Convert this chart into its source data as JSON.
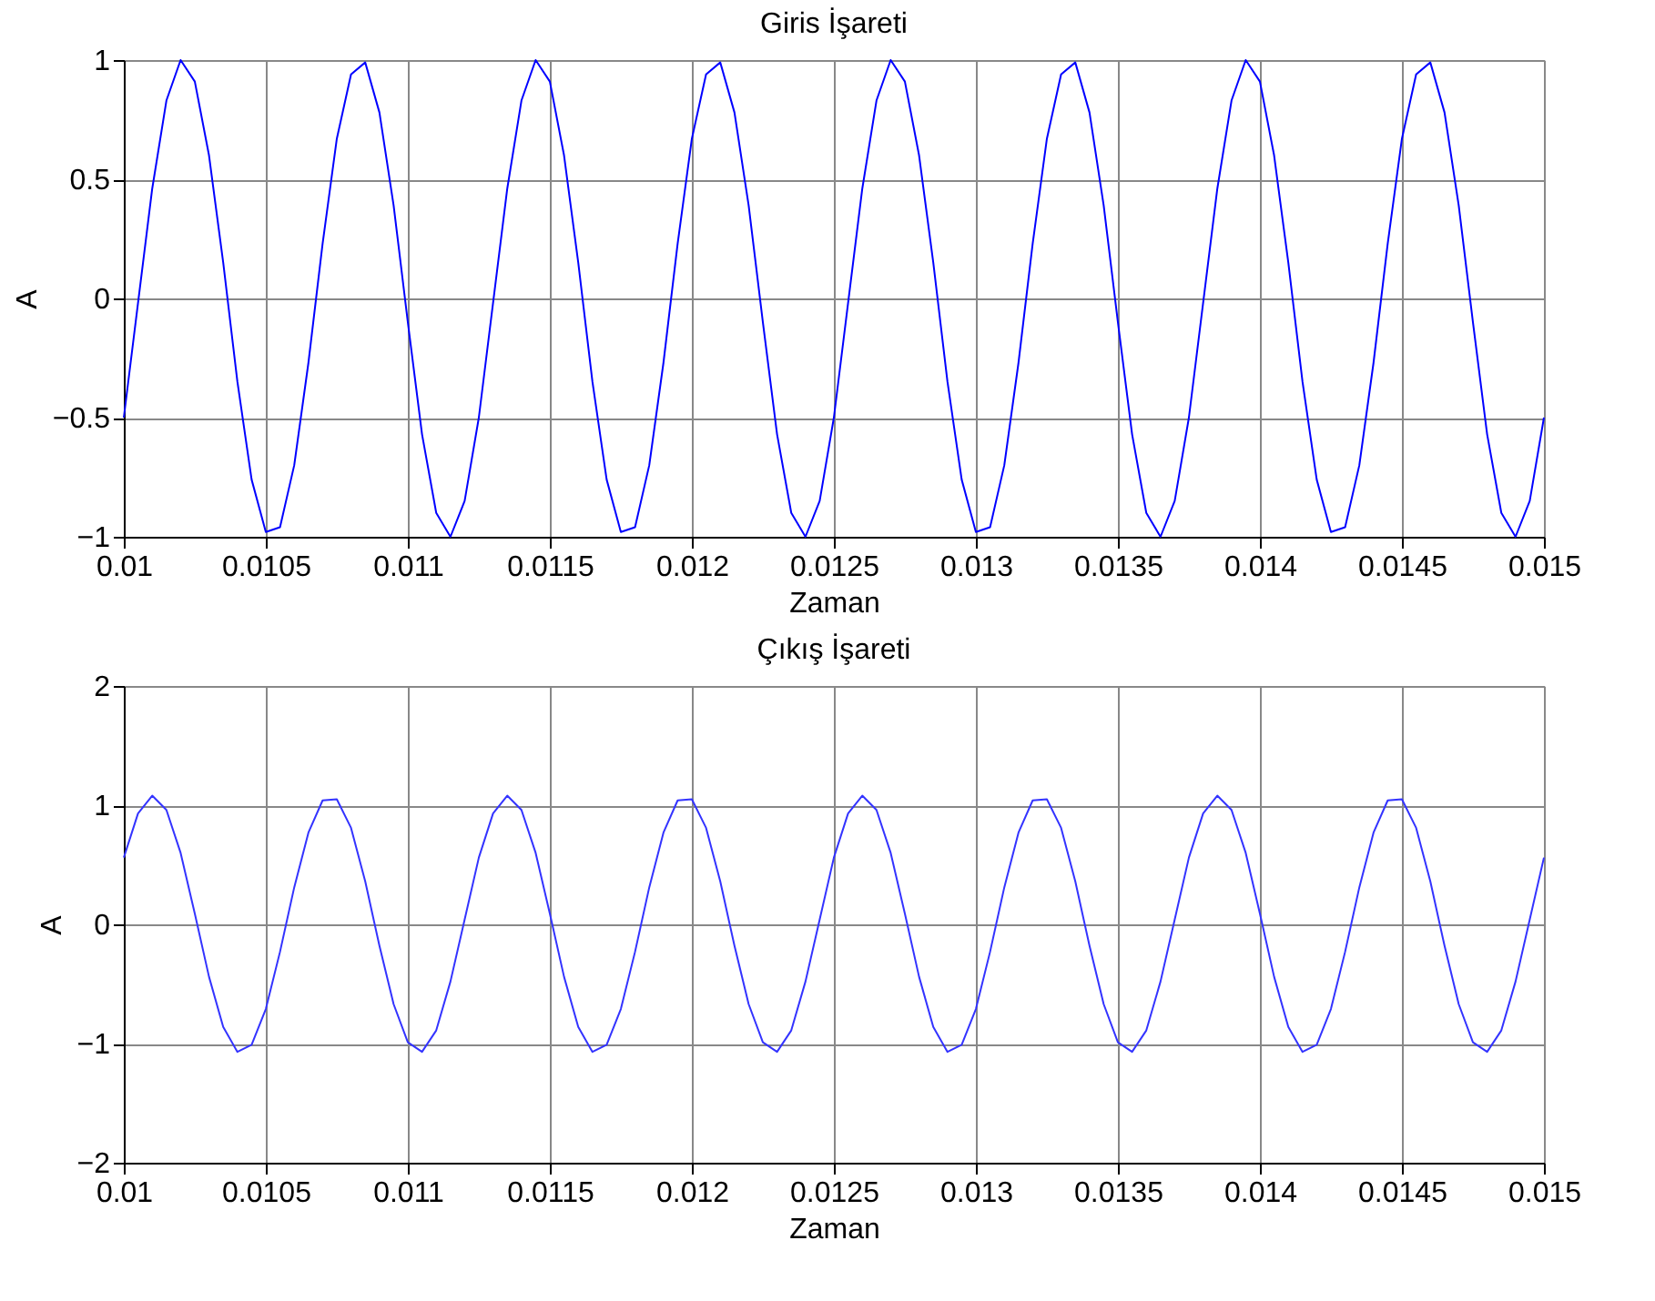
{
  "chart_data": [
    {
      "type": "line",
      "title": "Giris İşareti",
      "xlabel": "Zaman",
      "ylabel": "A",
      "xlim": [
        0.01,
        0.015
      ],
      "xticks": [
        0.01,
        0.0105,
        0.011,
        0.0115,
        0.012,
        0.0125,
        0.013,
        0.0135,
        0.014,
        0.0145,
        0.015
      ],
      "ylim": [
        -1,
        1
      ],
      "yticks": [
        -1,
        -0.5,
        0,
        0.5,
        1
      ],
      "grid": true,
      "marker": "none",
      "line_style": "solid",
      "x": [
        0.01,
        0.01005,
        0.0101,
        0.01015,
        0.0102,
        0.01025,
        0.0103,
        0.01035,
        0.0104,
        0.01045,
        0.0105,
        0.01055,
        0.0106,
        0.01065,
        0.0107,
        0.01075,
        0.0108,
        0.01085,
        0.0109,
        0.01095,
        0.011,
        0.01105,
        0.0111,
        0.01115,
        0.0112,
        0.01125,
        0.0113,
        0.01135,
        0.0114,
        0.01145,
        0.0115,
        0.01155,
        0.0116,
        0.01165,
        0.0117,
        0.01175,
        0.0118,
        0.01185,
        0.0119,
        0.01195,
        0.012,
        0.01205,
        0.0121,
        0.01215,
        0.0122,
        0.01225,
        0.0123,
        0.01235,
        0.0124,
        0.01245,
        0.0125,
        0.01255,
        0.0126,
        0.01265,
        0.0127,
        0.01275,
        0.0128,
        0.01285,
        0.0129,
        0.01295,
        0.013,
        0.01305,
        0.0131,
        0.01315,
        0.0132,
        0.01325,
        0.0133,
        0.01335,
        0.0134,
        0.01345,
        0.0135,
        0.01355,
        0.0136,
        0.01365,
        0.0137,
        0.01375,
        0.0138,
        0.01385,
        0.0139,
        0.01395,
        0.014,
        0.01405,
        0.0141,
        0.01415,
        0.0142,
        0.01425,
        0.0143,
        0.01435,
        0.0144,
        0.01445,
        0.0145,
        0.01455,
        0.0146,
        0.01465,
        0.0147,
        0.01475,
        0.0148,
        0.01485,
        0.0149,
        0.01495,
        0.015
      ],
      "series": [
        {
          "color": "#0000ff",
          "values": [
            -0.5,
            -0.02,
            0.46,
            0.83,
            1.0,
            0.91,
            0.6,
            0.15,
            -0.35,
            -0.76,
            -0.98,
            -0.96,
            -0.7,
            -0.27,
            0.23,
            0.67,
            0.94,
            0.99,
            0.78,
            0.39,
            -0.1,
            -0.57,
            -0.9,
            -1.0,
            -0.85,
            -0.5,
            -0.02,
            0.46,
            0.83,
            1.0,
            0.91,
            0.6,
            0.15,
            -0.35,
            -0.76,
            -0.98,
            -0.96,
            -0.7,
            -0.27,
            0.23,
            0.67,
            0.94,
            0.99,
            0.78,
            0.39,
            -0.1,
            -0.57,
            -0.9,
            -1.0,
            -0.85,
            -0.5,
            -0.02,
            0.46,
            0.83,
            1.0,
            0.91,
            0.6,
            0.15,
            -0.35,
            -0.76,
            -0.98,
            -0.96,
            -0.7,
            -0.27,
            0.23,
            0.67,
            0.94,
            0.99,
            0.78,
            0.39,
            -0.1,
            -0.57,
            -0.9,
            -1.0,
            -0.85,
            -0.5,
            -0.02,
            0.46,
            0.83,
            1.0,
            0.91,
            0.6,
            0.15,
            -0.35,
            -0.76,
            -0.98,
            -0.96,
            -0.7,
            -0.27,
            0.23,
            0.67,
            0.94,
            0.99,
            0.78,
            0.39,
            -0.1,
            -0.57,
            -0.9,
            -1.0,
            -0.85,
            -0.5
          ]
        }
      ]
    },
    {
      "type": "line",
      "title": "Çıkış İşareti",
      "xlabel": "Zaman",
      "ylabel": "A",
      "xlim": [
        0.01,
        0.015
      ],
      "xticks": [
        0.01,
        0.0105,
        0.011,
        0.0115,
        0.012,
        0.0125,
        0.013,
        0.0135,
        0.014,
        0.0145,
        0.015
      ],
      "ylim": [
        -2,
        2
      ],
      "yticks": [
        -2,
        -1,
        0,
        1,
        2
      ],
      "grid": true,
      "marker": "none",
      "line_style": "solid",
      "x": [
        0.01,
        0.01005,
        0.0101,
        0.01015,
        0.0102,
        0.01025,
        0.0103,
        0.01035,
        0.0104,
        0.01045,
        0.0105,
        0.01055,
        0.0106,
        0.01065,
        0.0107,
        0.01075,
        0.0108,
        0.01085,
        0.0109,
        0.01095,
        0.011,
        0.01105,
        0.0111,
        0.01115,
        0.0112,
        0.01125,
        0.0113,
        0.01135,
        0.0114,
        0.01145,
        0.0115,
        0.01155,
        0.0116,
        0.01165,
        0.0117,
        0.01175,
        0.0118,
        0.01185,
        0.0119,
        0.01195,
        0.012,
        0.01205,
        0.0121,
        0.01215,
        0.0122,
        0.01225,
        0.0123,
        0.01235,
        0.0124,
        0.01245,
        0.0125,
        0.01255,
        0.0126,
        0.01265,
        0.0127,
        0.01275,
        0.0128,
        0.01285,
        0.0129,
        0.01295,
        0.013,
        0.01305,
        0.0131,
        0.01315,
        0.0132,
        0.01325,
        0.0133,
        0.01335,
        0.0134,
        0.01345,
        0.0135,
        0.01355,
        0.0136,
        0.01365,
        0.0137,
        0.01375,
        0.0138,
        0.01385,
        0.0139,
        0.01395,
        0.014,
        0.01405,
        0.0141,
        0.01415,
        0.0142,
        0.01425,
        0.0143,
        0.01435,
        0.0144,
        0.01445,
        0.0145,
        0.01455,
        0.0146,
        0.01465,
        0.0147,
        0.01475,
        0.0148,
        0.01485,
        0.0149,
        0.01495,
        0.015
      ],
      "series": [
        {
          "color": "#3333ff",
          "values": [
            0.56,
            0.93,
            1.08,
            0.96,
            0.6,
            0.09,
            -0.44,
            -0.86,
            -1.07,
            -1.01,
            -0.71,
            -0.23,
            0.31,
            0.77,
            1.04,
            1.05,
            0.81,
            0.36,
            -0.18,
            -0.67,
            -0.99,
            -1.07,
            -0.89,
            -0.48,
            0.04,
            0.56,
            0.93,
            1.08,
            0.96,
            0.6,
            0.09,
            -0.44,
            -0.86,
            -1.07,
            -1.01,
            -0.71,
            -0.23,
            0.31,
            0.77,
            1.04,
            1.05,
            0.81,
            0.36,
            -0.18,
            -0.67,
            -0.99,
            -1.07,
            -0.89,
            -0.48,
            0.04,
            0.56,
            0.93,
            1.08,
            0.96,
            0.6,
            0.09,
            -0.44,
            -0.86,
            -1.07,
            -1.01,
            -0.71,
            -0.23,
            0.31,
            0.77,
            1.04,
            1.05,
            0.81,
            0.36,
            -0.18,
            -0.67,
            -0.99,
            -1.07,
            -0.89,
            -0.48,
            0.04,
            0.56,
            0.93,
            1.08,
            0.96,
            0.6,
            0.09,
            -0.44,
            -0.86,
            -1.07,
            -1.01,
            -0.71,
            -0.23,
            0.31,
            0.77,
            1.04,
            1.05,
            0.81,
            0.36,
            -0.18,
            -0.67,
            -0.99,
            -1.07,
            -0.89,
            -0.48,
            0.04,
            0.56
          ]
        }
      ]
    }
  ]
}
